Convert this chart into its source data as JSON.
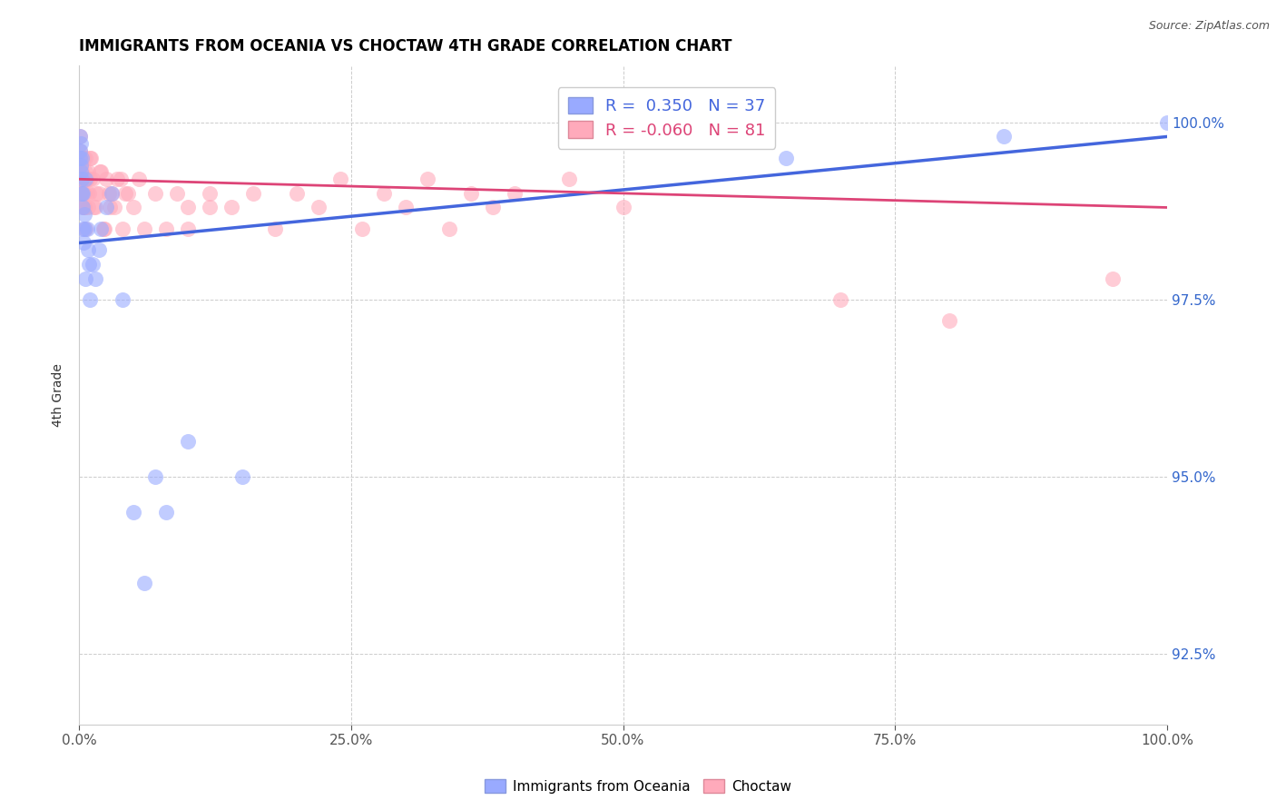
{
  "title": "IMMIGRANTS FROM OCEANIA VS CHOCTAW 4TH GRADE CORRELATION CHART",
  "source_text": "Source: ZipAtlas.com",
  "ylabel": "4th Grade",
  "legend_label1": "Immigrants from Oceania",
  "legend_label2": "Choctaw",
  "R1": 0.35,
  "N1": 37,
  "R2": -0.06,
  "N2": 81,
  "blue_color": "#99aaff",
  "pink_color": "#ffaabb",
  "blue_line_color": "#4466dd",
  "pink_line_color": "#dd4477",
  "xmin": 0.0,
  "xmax": 100.0,
  "ymin": 91.5,
  "ymax": 100.8,
  "ytick_labels": [
    "92.5%",
    "95.0%",
    "97.5%",
    "100.0%"
  ],
  "ytick_values": [
    92.5,
    95.0,
    97.5,
    100.0
  ],
  "xtick_labels": [
    "0.0%",
    "25.0%",
    "50.0%",
    "75.0%",
    "100.0%"
  ],
  "xtick_values": [
    0.0,
    25.0,
    50.0,
    75.0,
    100.0
  ],
  "blue_x": [
    0.05,
    0.08,
    0.1,
    0.12,
    0.15,
    0.18,
    0.2,
    0.22,
    0.25,
    0.28,
    0.3,
    0.35,
    0.4,
    0.45,
    0.5,
    0.55,
    0.6,
    0.7,
    0.8,
    0.9,
    1.0,
    1.2,
    1.5,
    1.8,
    2.0,
    2.5,
    3.0,
    4.0,
    5.0,
    6.0,
    7.0,
    8.0,
    10.0,
    15.0,
    65.0,
    85.0,
    100.0
  ],
  "blue_y": [
    99.8,
    99.5,
    99.6,
    99.7,
    99.3,
    99.4,
    99.2,
    99.0,
    99.5,
    98.8,
    98.5,
    99.0,
    98.3,
    98.7,
    98.5,
    99.2,
    97.8,
    98.5,
    98.2,
    98.0,
    97.5,
    98.0,
    97.8,
    98.2,
    98.5,
    98.8,
    99.0,
    97.5,
    94.5,
    93.5,
    95.0,
    94.5,
    95.5,
    95.0,
    99.5,
    99.8,
    100.0
  ],
  "pink_x": [
    0.02,
    0.04,
    0.06,
    0.08,
    0.1,
    0.12,
    0.15,
    0.18,
    0.2,
    0.22,
    0.25,
    0.28,
    0.3,
    0.35,
    0.4,
    0.45,
    0.5,
    0.55,
    0.6,
    0.7,
    0.8,
    0.9,
    1.0,
    1.2,
    1.5,
    1.8,
    2.0,
    2.2,
    2.5,
    2.8,
    3.0,
    3.5,
    4.0,
    4.5,
    5.0,
    5.5,
    6.0,
    7.0,
    8.0,
    9.0,
    10.0,
    12.0,
    14.0,
    16.0,
    18.0,
    20.0,
    22.0,
    24.0,
    26.0,
    28.0,
    30.0,
    32.0,
    34.0,
    36.0,
    38.0,
    40.0,
    45.0,
    50.0,
    10.0,
    12.0,
    0.15,
    0.25,
    0.35,
    0.45,
    0.55,
    0.65,
    0.75,
    0.85,
    0.95,
    1.1,
    1.3,
    1.6,
    1.9,
    2.3,
    2.7,
    3.2,
    3.8,
    4.2,
    70.0,
    80.0,
    95.0
  ],
  "pink_y": [
    99.5,
    99.8,
    99.2,
    99.6,
    99.0,
    99.4,
    99.5,
    99.2,
    99.3,
    99.0,
    99.5,
    98.8,
    99.2,
    99.0,
    99.5,
    98.8,
    99.0,
    99.3,
    98.5,
    99.2,
    98.8,
    99.0,
    99.5,
    99.2,
    98.8,
    99.0,
    99.3,
    98.5,
    99.2,
    98.8,
    99.0,
    99.2,
    98.5,
    99.0,
    98.8,
    99.2,
    98.5,
    99.0,
    98.5,
    99.0,
    98.8,
    99.0,
    98.8,
    99.0,
    98.5,
    99.0,
    98.8,
    99.2,
    98.5,
    99.0,
    98.8,
    99.2,
    98.5,
    99.0,
    98.8,
    99.0,
    99.2,
    98.8,
    98.5,
    98.8,
    99.5,
    99.0,
    99.2,
    98.8,
    99.5,
    99.2,
    99.0,
    99.3,
    99.2,
    99.5,
    98.8,
    99.0,
    99.3,
    98.5,
    99.0,
    98.8,
    99.2,
    99.0,
    97.5,
    97.2,
    97.8
  ]
}
